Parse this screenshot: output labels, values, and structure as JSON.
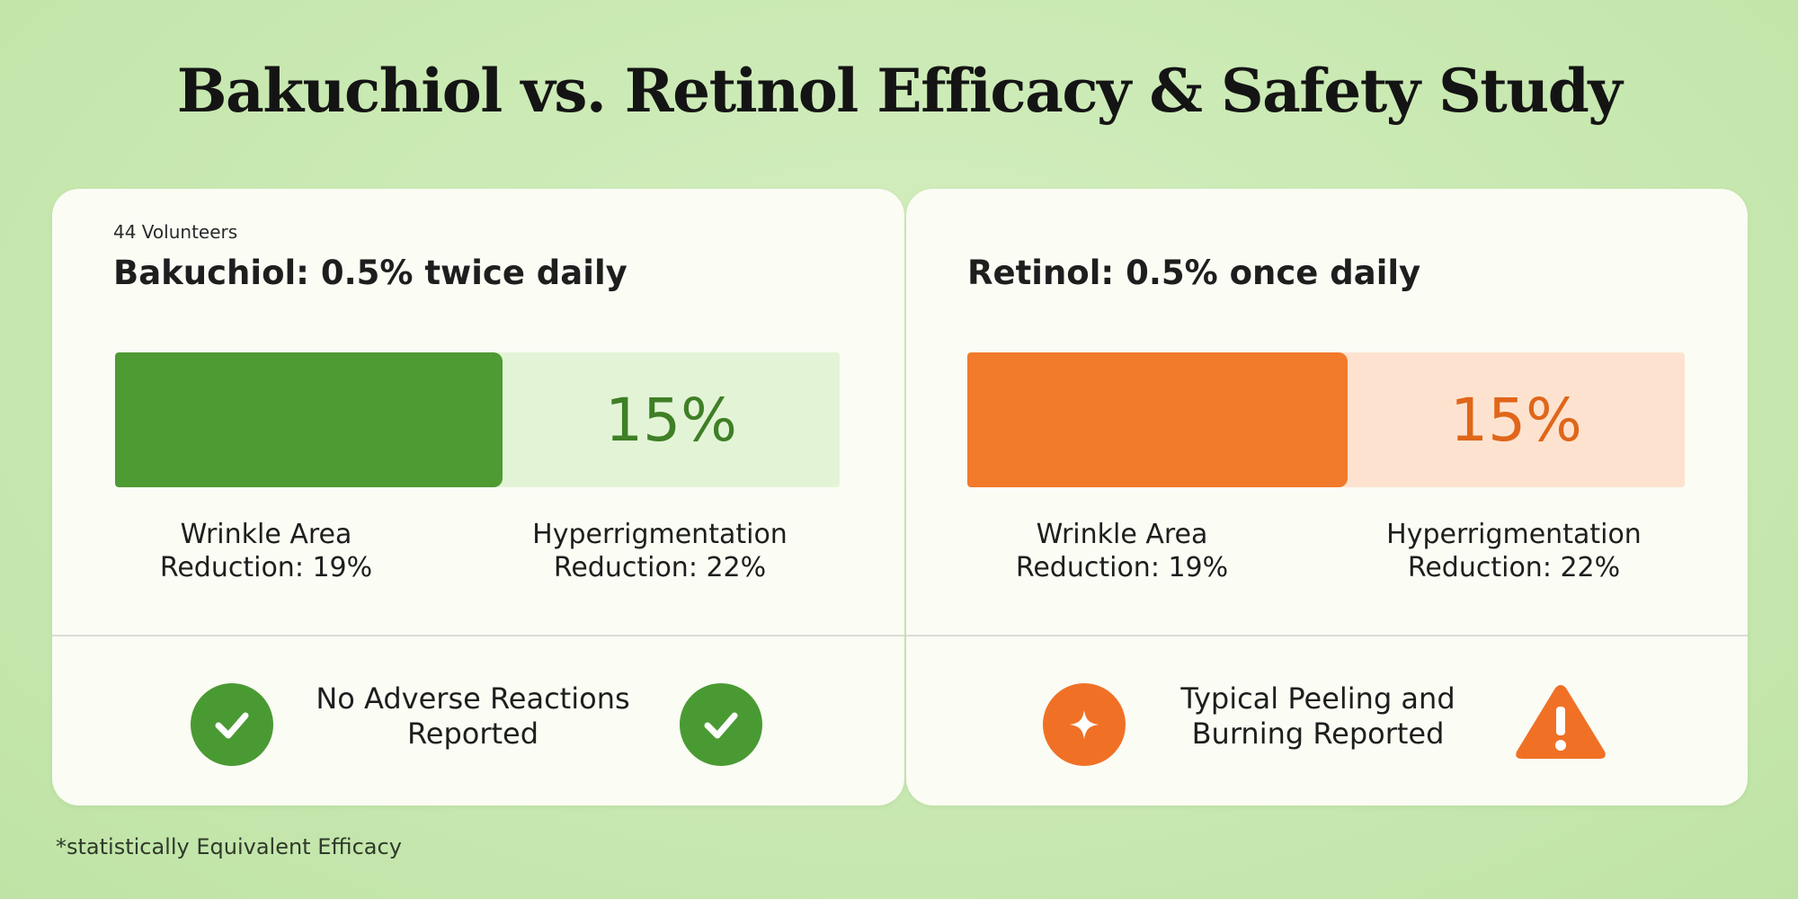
{
  "title": "Bakuchiol vs. Retinol Efficacy & Safety Study",
  "colors": {
    "bakuchiol_fill": "#4e9a33",
    "bakuchiol_text": "#3f7f26",
    "retinol_fill": "#f27a2b",
    "retinol_text": "#e0661a",
    "warning": "#f07126"
  },
  "left_panel": {
    "subtitle": "44 Volunteers",
    "heading": "Bakuchiol: 0.5% twice daily",
    "bar_value_label": "15%",
    "metric_wrinkle_line1": "Wrinkle Area",
    "metric_wrinkle_line2": "Reduction: 19%",
    "metric_hyper_line1": "Hyperrigmentation",
    "metric_hyper_line2": "Reduction: 22%",
    "status_line1": "No Adverse Reactions",
    "status_line2": "Reported",
    "status_icon_left": "check-circle-icon",
    "status_icon_right": "check-circle-icon"
  },
  "right_panel": {
    "heading": "Retinol: 0.5% once daily",
    "bar_value_label": "15%",
    "metric_wrinkle_line1": "Wrinkle Area",
    "metric_wrinkle_line2": "Reduction: 19%",
    "metric_hyper_line1": "Hyperrigmentation",
    "metric_hyper_line2": "Reduction: 22%",
    "status_line1": "Typical Peeling and",
    "status_line2": "Burning Reported",
    "status_icon_left": "sparkle-circle-icon",
    "status_icon_right": "warning-triangle-icon"
  },
  "footnote": "*statistically Equivalent Efficacy",
  "chart_data": {
    "type": "bar",
    "title": "Bakuchiol vs. Retinol Efficacy & Safety Study",
    "categories": [
      "Bakuchiol: 0.5% twice daily",
      "Retinol: 0.5% once daily"
    ],
    "values": [
      15,
      15
    ],
    "fill_fraction": [
      0.535,
      0.53
    ],
    "unit": "%"
  }
}
